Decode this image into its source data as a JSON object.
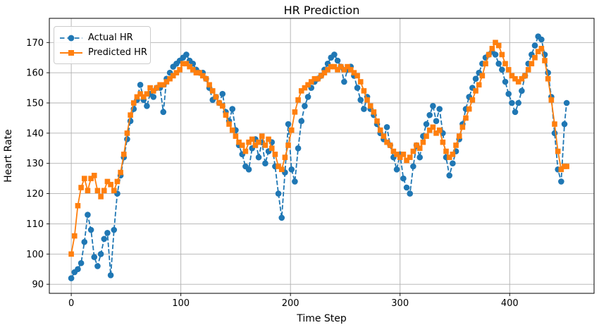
{
  "chart_data": {
    "type": "line",
    "title": "HR Prediction",
    "xlabel": "Time Step",
    "ylabel": "Heart Rate",
    "xlim": [
      -20,
      477
    ],
    "ylim": [
      87,
      178
    ],
    "xticks": [
      0,
      100,
      200,
      300,
      400
    ],
    "yticks": [
      90,
      100,
      110,
      120,
      130,
      140,
      150,
      160,
      170
    ],
    "grid": true,
    "grid_color": "#b0b0b0",
    "legend_position": "upper left",
    "x": [
      0,
      3,
      6,
      9,
      12,
      15,
      18,
      21,
      24,
      27,
      30,
      33,
      36,
      39,
      42,
      45,
      48,
      51,
      54,
      57,
      60,
      63,
      66,
      69,
      72,
      75,
      78,
      81,
      84,
      87,
      90,
      93,
      96,
      99,
      102,
      105,
      108,
      111,
      114,
      117,
      120,
      123,
      126,
      129,
      132,
      135,
      138,
      141,
      144,
      147,
      150,
      153,
      156,
      159,
      162,
      165,
      168,
      171,
      174,
      177,
      180,
      183,
      186,
      189,
      192,
      195,
      198,
      201,
      204,
      207,
      210,
      213,
      216,
      219,
      222,
      225,
      228,
      231,
      234,
      237,
      240,
      243,
      246,
      249,
      252,
      255,
      258,
      261,
      264,
      267,
      270,
      273,
      276,
      279,
      282,
      285,
      288,
      291,
      294,
      297,
      300,
      303,
      306,
      309,
      312,
      315,
      318,
      321,
      324,
      327,
      330,
      333,
      336,
      339,
      342,
      345,
      348,
      351,
      354,
      357,
      360,
      363,
      366,
      369,
      372,
      375,
      378,
      381,
      384,
      387,
      390,
      393,
      396,
      399,
      402,
      405,
      408,
      411,
      414,
      417,
      420,
      423,
      426,
      429,
      432,
      435,
      438,
      441,
      444,
      447,
      450,
      452
    ],
    "series": [
      {
        "name": "Actual HR",
        "color": "#1f77b4",
        "marker": "circle",
        "line_style": "dashed",
        "values": [
          92,
          94,
          95,
          97,
          104,
          113,
          108,
          99,
          96,
          100,
          105,
          107,
          93,
          108,
          120,
          126,
          132,
          138,
          144,
          148,
          151,
          156,
          151,
          149,
          153,
          152,
          155,
          155,
          147,
          158,
          160,
          162,
          163,
          164,
          165,
          166,
          164,
          163,
          161,
          160,
          160,
          158,
          155,
          151,
          152,
          150,
          153,
          147,
          144,
          148,
          141,
          136,
          133,
          129,
          128,
          135,
          138,
          132,
          137,
          130,
          134,
          137,
          129,
          120,
          112,
          127,
          143,
          128,
          124,
          135,
          144,
          149,
          152,
          155,
          157,
          158,
          159,
          161,
          163,
          165,
          166,
          164,
          162,
          157,
          161,
          162,
          159,
          155,
          151,
          148,
          152,
          148,
          146,
          143,
          140,
          138,
          142,
          136,
          132,
          128,
          133,
          125,
          122,
          120,
          129,
          136,
          132,
          139,
          143,
          146,
          149,
          144,
          148,
          140,
          132,
          126,
          130,
          134,
          138,
          143,
          148,
          152,
          155,
          158,
          160,
          163,
          165,
          166,
          167,
          166,
          163,
          161,
          157,
          153,
          150,
          147,
          150,
          154,
          159,
          163,
          166,
          169,
          172,
          171,
          166,
          160,
          152,
          140,
          128,
          124,
          143,
          150
        ]
      },
      {
        "name": "Predicted HR",
        "color": "#ff7f0e",
        "marker": "square",
        "line_style": "solid",
        "values": [
          100,
          106,
          116,
          122,
          125,
          121,
          125,
          126,
          121,
          119,
          121,
          124,
          123,
          121,
          124,
          127,
          133,
          140,
          146,
          150,
          152,
          153,
          152,
          153,
          155,
          154,
          155,
          156,
          156,
          157,
          158,
          159,
          160,
          161,
          163,
          163,
          162,
          161,
          160,
          160,
          159,
          158,
          156,
          154,
          152,
          150,
          149,
          146,
          143,
          141,
          139,
          137,
          136,
          134,
          137,
          138,
          136,
          137,
          139,
          136,
          138,
          135,
          133,
          129,
          128,
          132,
          136,
          141,
          147,
          151,
          154,
          155,
          156,
          157,
          158,
          158,
          159,
          160,
          161,
          162,
          162,
          161,
          162,
          161,
          162,
          161,
          160,
          159,
          157,
          154,
          151,
          149,
          147,
          144,
          141,
          139,
          137,
          136,
          134,
          133,
          132,
          133,
          131,
          132,
          134,
          136,
          135,
          137,
          139,
          141,
          142,
          140,
          141,
          137,
          134,
          132,
          133,
          136,
          139,
          142,
          145,
          148,
          151,
          154,
          156,
          159,
          163,
          166,
          168,
          170,
          169,
          166,
          163,
          161,
          159,
          158,
          157,
          158,
          159,
          161,
          163,
          165,
          167,
          168,
          164,
          158,
          151,
          143,
          134,
          128,
          129,
          129
        ]
      }
    ]
  }
}
